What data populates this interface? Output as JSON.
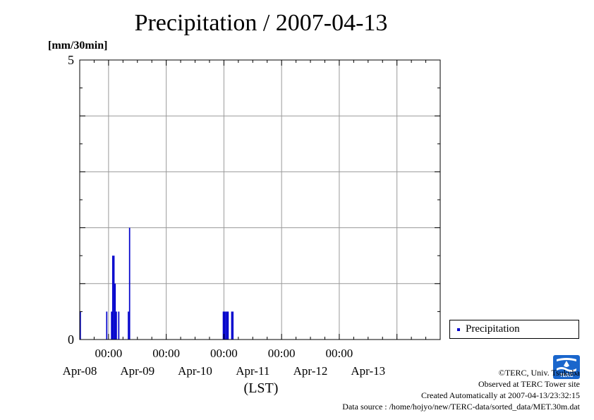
{
  "header": {
    "title": "Precipitation / 2007-04-13",
    "unit": "[mm/30min]"
  },
  "chart_data": {
    "type": "bar",
    "title": "Precipitation / 2007-04-13",
    "ylabel": "[mm/30min]",
    "xlabel": "(LST)",
    "ylim": [
      0,
      5
    ],
    "y_ticks": [
      0,
      5
    ],
    "x_range": [
      "2007-04-07T12:00",
      "2007-04-13T18:00"
    ],
    "x_time_ticks": [
      "00:00",
      "00:00",
      "00:00",
      "00:00",
      "00:00"
    ],
    "x_date_labels": [
      "Apr-08",
      "Apr-09",
      "Apr-10",
      "Apr-11",
      "Apr-12",
      "Apr-13"
    ],
    "grid": true,
    "legend_position": "bottom-right",
    "series": [
      {
        "name": "Precipitation",
        "color": "#0000cc",
        "points": [
          {
            "t": "2007-04-07T12:00",
            "v": 0.5
          },
          {
            "t": "2007-04-07T23:00",
            "v": 0.5
          },
          {
            "t": "2007-04-08T01:00",
            "v": 0.5
          },
          {
            "t": "2007-04-08T01:30",
            "v": 1.5
          },
          {
            "t": "2007-04-08T02:00",
            "v": 1.5
          },
          {
            "t": "2007-04-08T02:30",
            "v": 1.0
          },
          {
            "t": "2007-04-08T03:00",
            "v": 0.5
          },
          {
            "t": "2007-04-08T04:00",
            "v": 0.5
          },
          {
            "t": "2007-04-08T08:00",
            "v": 0.5
          },
          {
            "t": "2007-04-08T08:30",
            "v": 2.0
          },
          {
            "t": "2007-04-09T23:30",
            "v": 0.5
          },
          {
            "t": "2007-04-10T00:00",
            "v": 0.5
          },
          {
            "t": "2007-04-10T00:30",
            "v": 0.5
          },
          {
            "t": "2007-04-10T01:00",
            "v": 0.5
          },
          {
            "t": "2007-04-10T01:30",
            "v": 0.5
          },
          {
            "t": "2007-04-10T03:00",
            "v": 0.5
          },
          {
            "t": "2007-04-10T03:30",
            "v": 0.5
          }
        ]
      }
    ]
  },
  "legend": {
    "label": "Precipitation",
    "color": "#0000cc"
  },
  "footer": {
    "copyright": "©TERC, Univ. Tsukuba",
    "site": "Observed at TERC Tower site",
    "created": "Created Automatically at 2007-04-13/23:32:15",
    "source": "Data source : /home/hojyo/new/TERC-data/sorted_data/MET.30m.dat",
    "logo_text": "TERC",
    "logo_color": "#1a66cc"
  }
}
